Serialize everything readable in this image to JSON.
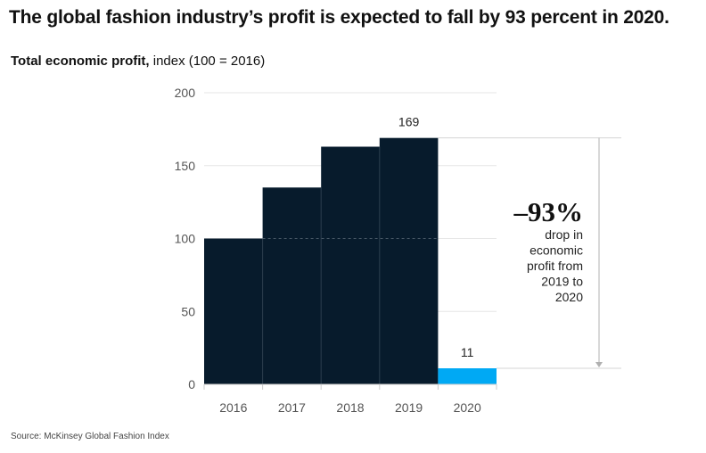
{
  "header": {
    "title": "The global fashion industry’s profit is expected to fall by 93 percent in 2020.",
    "subtitle_strong": "Total economic profit,",
    "subtitle_rest": " index (100 = 2016)"
  },
  "footer": {
    "source": "Source: McKinsey Global Fashion Index"
  },
  "chart_data": {
    "type": "bar",
    "title": "The global fashion industry’s profit is expected to fall by 93 percent in 2020.",
    "ylabel": "Total economic profit, index (100 = 2016)",
    "xlabel": "",
    "categories": [
      "2016",
      "2017",
      "2018",
      "2019",
      "2020"
    ],
    "values": [
      100,
      135,
      163,
      169,
      11
    ],
    "data_labels": {
      "2019": "169",
      "2020": "11"
    },
    "ylim": [
      0,
      200
    ],
    "yticks": [
      0,
      50,
      100,
      150,
      200
    ],
    "grid": true,
    "reference_line": 100,
    "colors": {
      "default": "#071b2c",
      "highlight": "#00a9f4"
    },
    "highlight_category": "2020",
    "annotation": {
      "value": "–93%",
      "lines": [
        "drop in",
        "economic",
        "profit from",
        "2019 to",
        "2020"
      ]
    }
  }
}
